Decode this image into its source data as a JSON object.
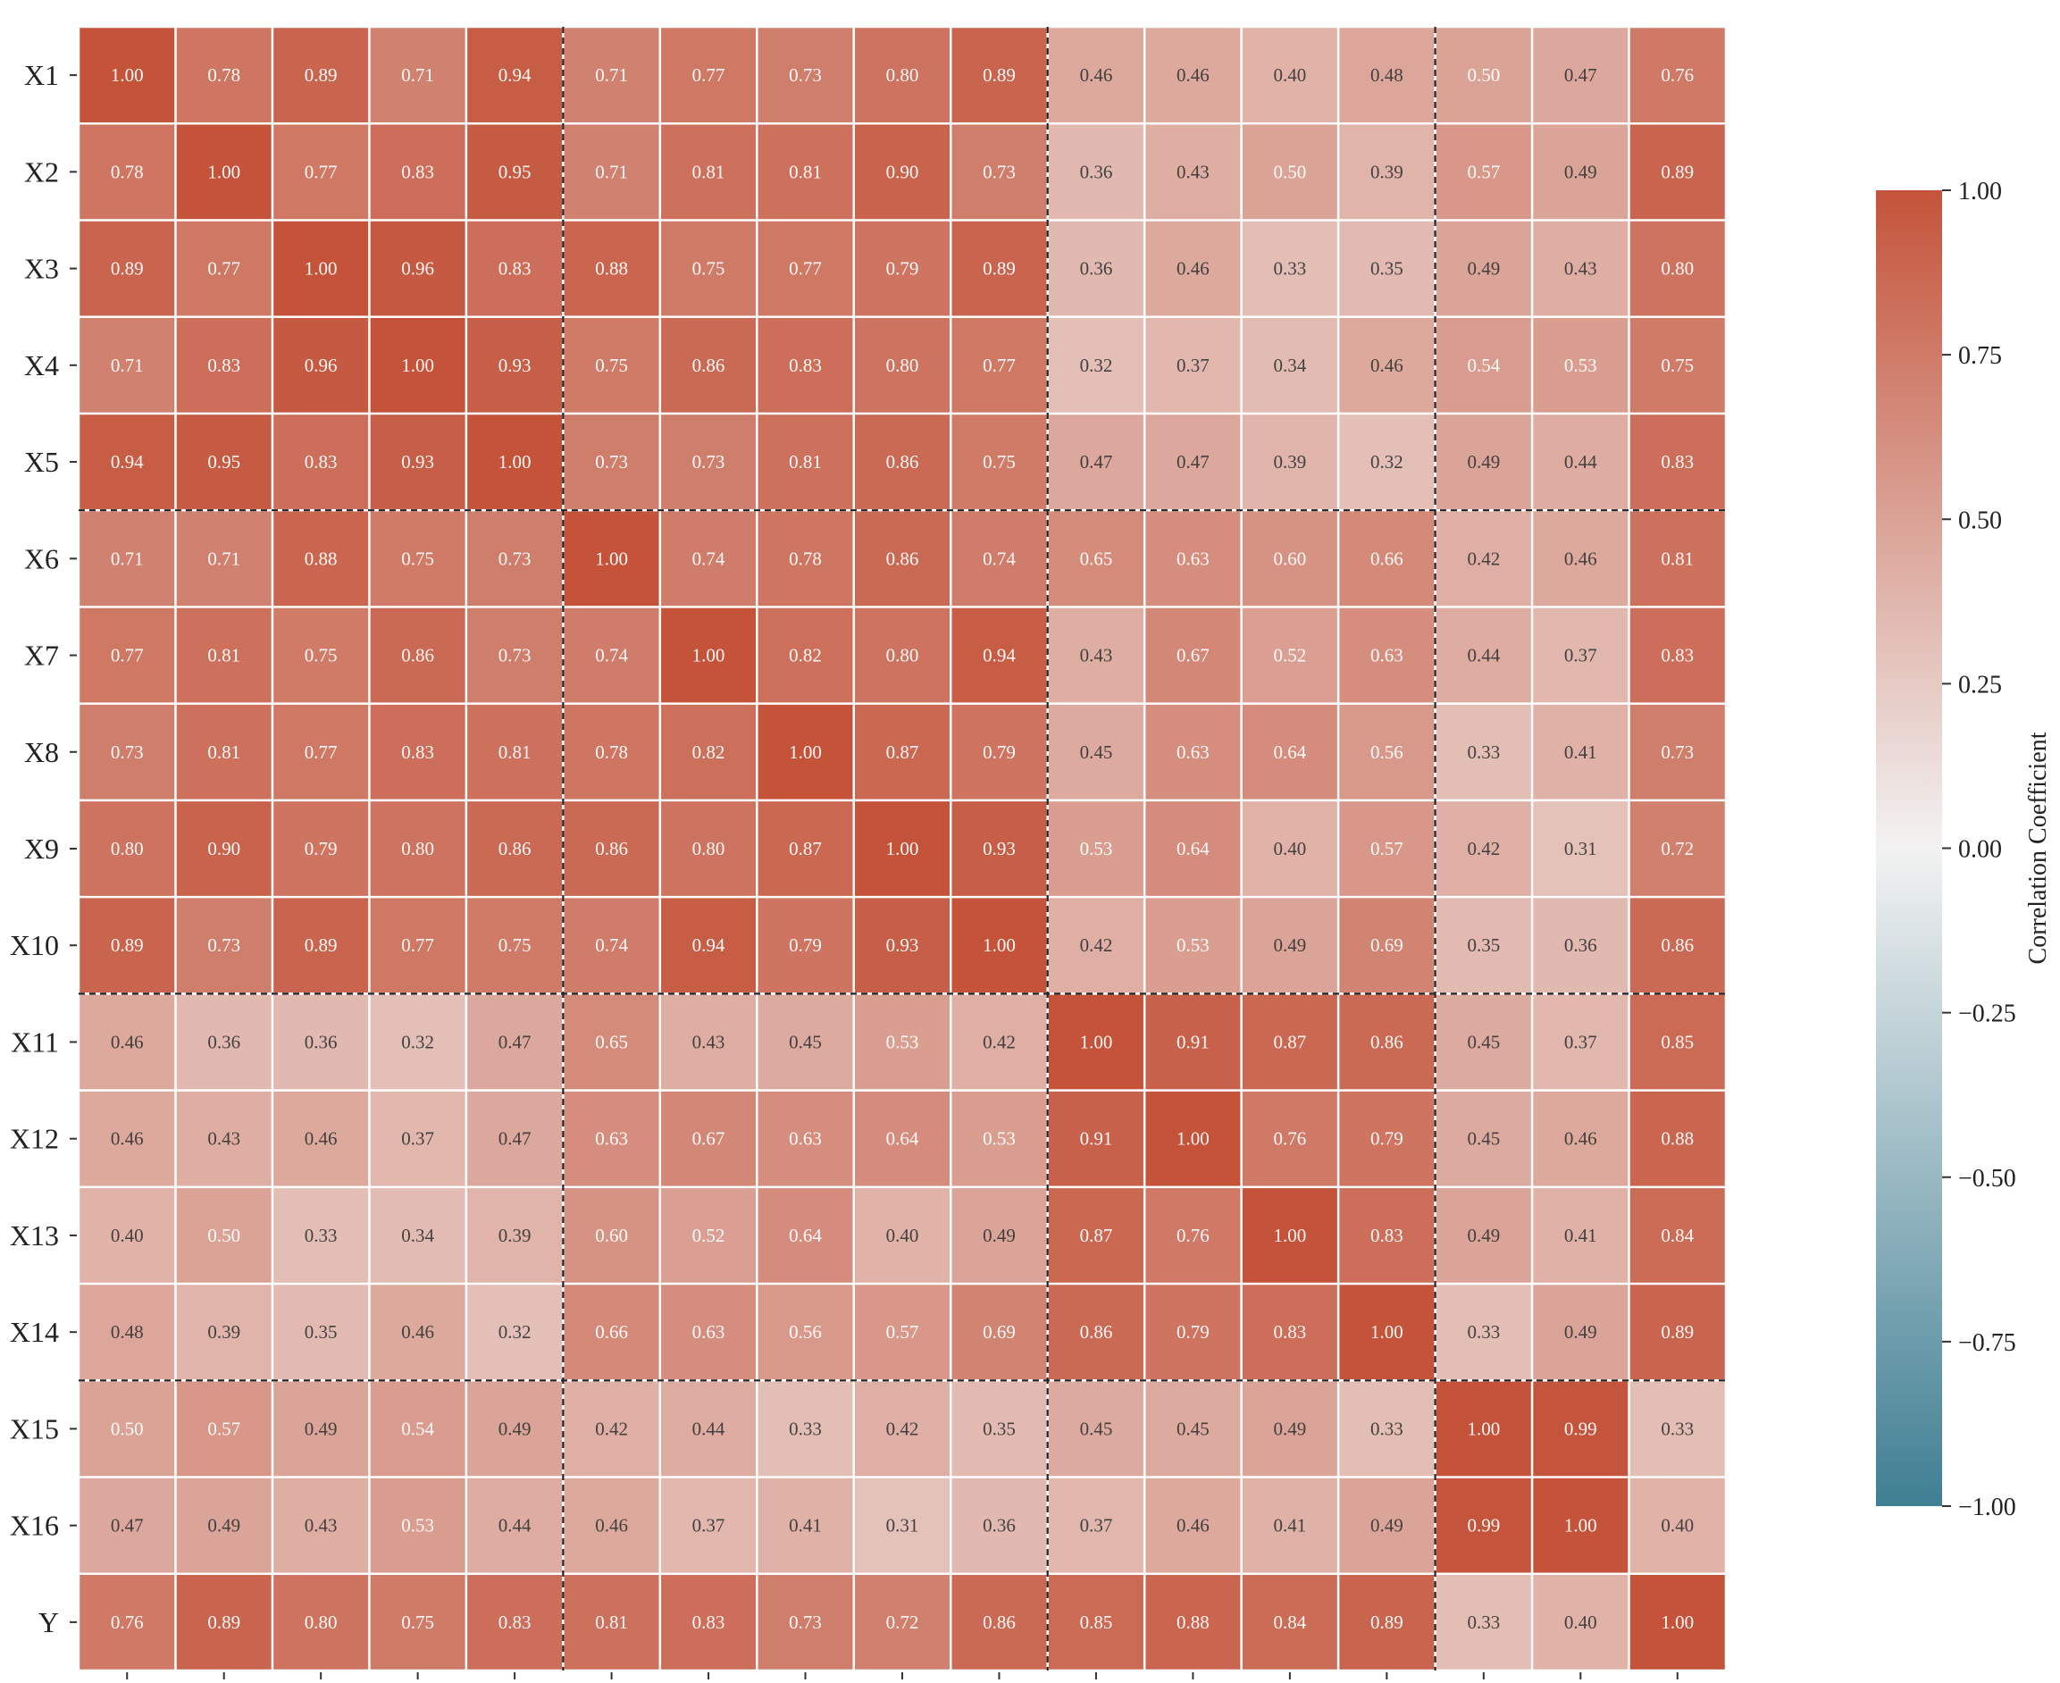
{
  "chart_data": {
    "type": "heatmap",
    "row_labels": [
      "X1",
      "X2",
      "X3",
      "X4",
      "X5",
      "X6",
      "X7",
      "X8",
      "X9",
      "X10",
      "X11",
      "X12",
      "X13",
      "X14",
      "X15",
      "X16",
      "Y"
    ],
    "values": [
      [
        1.0,
        0.78,
        0.89,
        0.71,
        0.94,
        0.71,
        0.77,
        0.73,
        0.8,
        0.89,
        0.46,
        0.46,
        0.4,
        0.48,
        0.5,
        0.47,
        0.76
      ],
      [
        0.78,
        1.0,
        0.77,
        0.83,
        0.95,
        0.71,
        0.81,
        0.81,
        0.9,
        0.73,
        0.36,
        0.43,
        0.5,
        0.39,
        0.57,
        0.49,
        0.89
      ],
      [
        0.89,
        0.77,
        1.0,
        0.96,
        0.83,
        0.88,
        0.75,
        0.77,
        0.79,
        0.89,
        0.36,
        0.46,
        0.33,
        0.35,
        0.49,
        0.43,
        0.8
      ],
      [
        0.71,
        0.83,
        0.96,
        1.0,
        0.93,
        0.75,
        0.86,
        0.83,
        0.8,
        0.77,
        0.32,
        0.37,
        0.34,
        0.46,
        0.54,
        0.53,
        0.75
      ],
      [
        0.94,
        0.95,
        0.83,
        0.93,
        1.0,
        0.73,
        0.73,
        0.81,
        0.86,
        0.75,
        0.47,
        0.47,
        0.39,
        0.32,
        0.49,
        0.44,
        0.83
      ],
      [
        0.71,
        0.71,
        0.88,
        0.75,
        0.73,
        1.0,
        0.74,
        0.78,
        0.86,
        0.74,
        0.65,
        0.63,
        0.6,
        0.66,
        0.42,
        0.46,
        0.81
      ],
      [
        0.77,
        0.81,
        0.75,
        0.86,
        0.73,
        0.74,
        1.0,
        0.82,
        0.8,
        0.94,
        0.43,
        0.67,
        0.52,
        0.63,
        0.44,
        0.37,
        0.83
      ],
      [
        0.73,
        0.81,
        0.77,
        0.83,
        0.81,
        0.78,
        0.82,
        1.0,
        0.87,
        0.79,
        0.45,
        0.63,
        0.64,
        0.56,
        0.33,
        0.41,
        0.73
      ],
      [
        0.8,
        0.9,
        0.79,
        0.8,
        0.86,
        0.86,
        0.8,
        0.87,
        1.0,
        0.93,
        0.53,
        0.64,
        0.4,
        0.57,
        0.42,
        0.31,
        0.72
      ],
      [
        0.89,
        0.73,
        0.89,
        0.77,
        0.75,
        0.74,
        0.94,
        0.79,
        0.93,
        1.0,
        0.42,
        0.53,
        0.49,
        0.69,
        0.35,
        0.36,
        0.86
      ],
      [
        0.46,
        0.36,
        0.36,
        0.32,
        0.47,
        0.65,
        0.43,
        0.45,
        0.53,
        0.42,
        1.0,
        0.91,
        0.87,
        0.86,
        0.45,
        0.37,
        0.85
      ],
      [
        0.46,
        0.43,
        0.46,
        0.37,
        0.47,
        0.63,
        0.67,
        0.63,
        0.64,
        0.53,
        0.91,
        1.0,
        0.76,
        0.79,
        0.45,
        0.46,
        0.88
      ],
      [
        0.4,
        0.5,
        0.33,
        0.34,
        0.39,
        0.6,
        0.52,
        0.64,
        0.4,
        0.49,
        0.87,
        0.76,
        1.0,
        0.83,
        0.49,
        0.41,
        0.84
      ],
      [
        0.48,
        0.39,
        0.35,
        0.46,
        0.32,
        0.66,
        0.63,
        0.56,
        0.57,
        0.69,
        0.86,
        0.79,
        0.83,
        1.0,
        0.33,
        0.49,
        0.89
      ],
      [
        0.5,
        0.57,
        0.49,
        0.54,
        0.49,
        0.42,
        0.44,
        0.33,
        0.42,
        0.35,
        0.45,
        0.45,
        0.49,
        0.33,
        1.0,
        0.99,
        0.33
      ],
      [
        0.47,
        0.49,
        0.43,
        0.53,
        0.44,
        0.46,
        0.37,
        0.41,
        0.31,
        0.36,
        0.37,
        0.46,
        0.41,
        0.49,
        0.99,
        1.0,
        0.4
      ],
      [
        0.76,
        0.89,
        0.8,
        0.75,
        0.83,
        0.81,
        0.83,
        0.73,
        0.72,
        0.86,
        0.85,
        0.88,
        0.84,
        0.89,
        0.33,
        0.4,
        1.0
      ]
    ],
    "group_boundaries_after_index": [
      4,
      9,
      13
    ],
    "colorbar": {
      "title": "Correlation Coefficient",
      "range": [
        -1.0,
        1.0
      ],
      "ticks": [
        "1.00",
        "0.75",
        "0.50",
        "0.25",
        "0.00",
        "−0.25",
        "−0.50",
        "−0.75",
        "−1.00"
      ],
      "tick_values": [
        1.0,
        0.75,
        0.5,
        0.25,
        0.0,
        -0.25,
        -0.5,
        -0.75,
        -1.0
      ],
      "color_low": "#3f7f93",
      "color_mid": "#f2f2f2",
      "color_high": "#c4533a"
    },
    "x_tick_labels_visible": false
  }
}
